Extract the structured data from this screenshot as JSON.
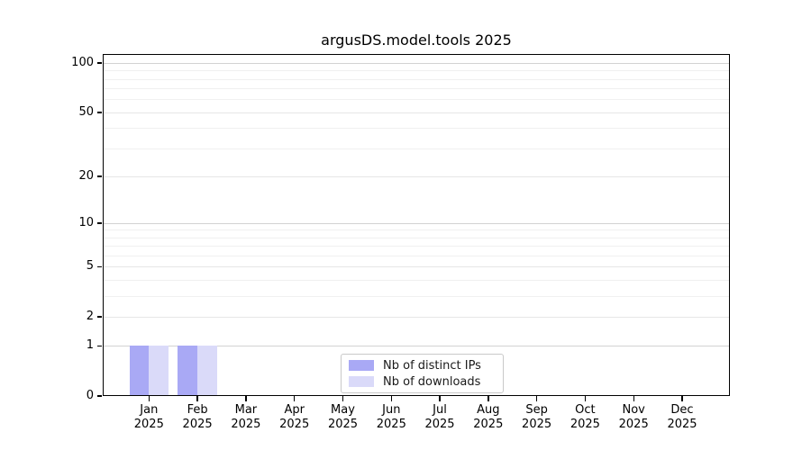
{
  "title": "argusDS.model.tools 2025",
  "colors": {
    "background": "#ffffff",
    "axis": "#000000",
    "grid_minor": "#f0f0f0",
    "grid_major": "#e6e6e6",
    "grid_emphasis": "#d2d2d2",
    "legend_border": "#c9c9c9",
    "text": "#000000"
  },
  "chart_data": {
    "type": "bar",
    "title": "argusDS.model.tools 2025",
    "xlabel": "",
    "ylabel": "",
    "x": {
      "months": [
        "Jan",
        "Feb",
        "Mar",
        "Apr",
        "May",
        "Jun",
        "Jul",
        "Aug",
        "Sep",
        "Oct",
        "Nov",
        "Dec"
      ],
      "year": "2025"
    },
    "series": [
      {
        "name": "Nb of distinct IPs",
        "color": "#a9a9f5",
        "values": [
          1,
          1,
          0,
          0,
          0,
          0,
          0,
          0,
          0,
          0,
          0,
          0
        ]
      },
      {
        "name": "Nb of downloads",
        "color": "#dadaf9",
        "values": [
          1,
          1,
          0,
          0,
          0,
          0,
          0,
          0,
          0,
          0,
          0,
          0
        ]
      }
    ],
    "yscale": "log1p",
    "y_axis": {
      "tick_labels": [
        "100",
        "50",
        "20",
        "10",
        "5",
        "2",
        "1",
        "0"
      ],
      "major_ticks": [
        100,
        50,
        20,
        10,
        5,
        2,
        1,
        0
      ],
      "minor_gridlines": [
        90,
        80,
        70,
        60,
        40,
        30,
        9,
        8,
        7,
        6,
        4,
        3
      ],
      "emphasis_gridlines": [
        100,
        10,
        1
      ],
      "ylim": [
        0,
        113
      ]
    },
    "grid": "horizontal-only",
    "legend": {
      "location": "lower center",
      "entries": [
        "Nb of distinct IPs",
        "Nb of downloads"
      ]
    }
  }
}
